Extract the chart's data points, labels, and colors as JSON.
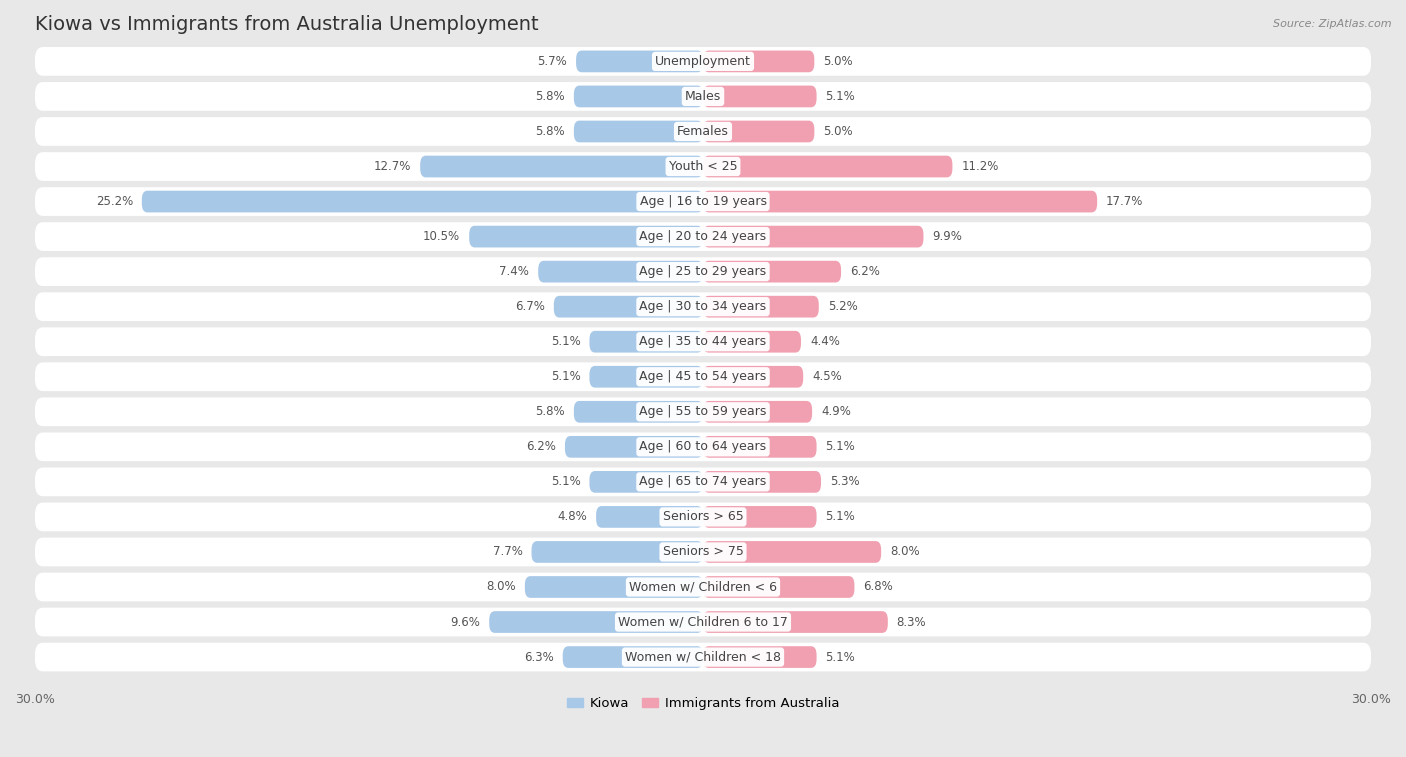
{
  "title": "Kiowa vs Immigrants from Australia Unemployment",
  "source": "Source: ZipAtlas.com",
  "categories": [
    "Unemployment",
    "Males",
    "Females",
    "Youth < 25",
    "Age | 16 to 19 years",
    "Age | 20 to 24 years",
    "Age | 25 to 29 years",
    "Age | 30 to 34 years",
    "Age | 35 to 44 years",
    "Age | 45 to 54 years",
    "Age | 55 to 59 years",
    "Age | 60 to 64 years",
    "Age | 65 to 74 years",
    "Seniors > 65",
    "Seniors > 75",
    "Women w/ Children < 6",
    "Women w/ Children 6 to 17",
    "Women w/ Children < 18"
  ],
  "kiowa_values": [
    5.7,
    5.8,
    5.8,
    12.7,
    25.2,
    10.5,
    7.4,
    6.7,
    5.1,
    5.1,
    5.8,
    6.2,
    5.1,
    4.8,
    7.7,
    8.0,
    9.6,
    6.3
  ],
  "australia_values": [
    5.0,
    5.1,
    5.0,
    11.2,
    17.7,
    9.9,
    6.2,
    5.2,
    4.4,
    4.5,
    4.9,
    5.1,
    5.3,
    5.1,
    8.0,
    6.8,
    8.3,
    5.1
  ],
  "kiowa_color": "#a8c8e8",
  "australia_color": "#f0a0b0",
  "background_color": "#e8e8e8",
  "row_color": "#ffffff",
  "axis_limit": 30.0,
  "legend_kiowa": "Kiowa",
  "legend_australia": "Immigrants from Australia",
  "title_fontsize": 14,
  "label_fontsize": 9,
  "value_fontsize": 8.5
}
